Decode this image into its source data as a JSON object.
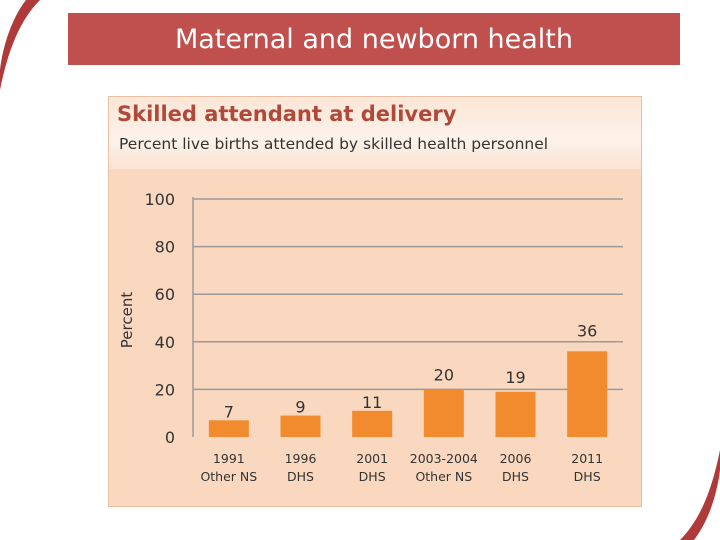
{
  "slide": {
    "title": "Maternal and newborn health",
    "colors": {
      "banner": "#c0504d",
      "panel": "#f9d8bf",
      "bar": "#f28a2e",
      "grid": "#9a9a9a"
    }
  },
  "chart_data": {
    "type": "bar",
    "title": "Skilled attendant at delivery",
    "subtitle": "Percent live births attended by skilled health personnel",
    "ylabel": "Percent",
    "xlabel": "",
    "ylim": [
      0,
      100
    ],
    "yticks": [
      0,
      20,
      40,
      60,
      80,
      100
    ],
    "grid": true,
    "categories": [
      [
        "1991",
        "Other NS"
      ],
      [
        "1996",
        "DHS"
      ],
      [
        "2001",
        "DHS"
      ],
      [
        "2003-2004",
        "Other NS"
      ],
      [
        "2006",
        "DHS"
      ],
      [
        "2011",
        "DHS"
      ]
    ],
    "values": [
      7,
      9,
      11,
      20,
      19,
      36
    ]
  }
}
